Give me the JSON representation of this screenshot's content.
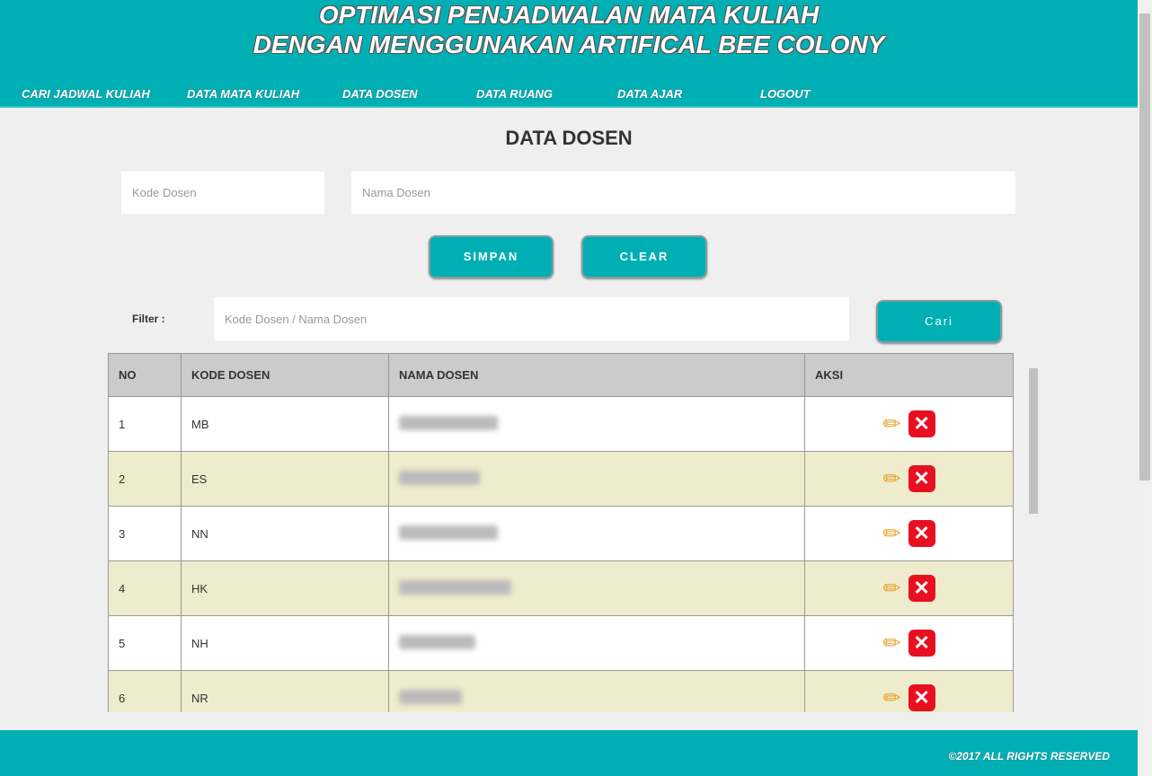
{
  "header": {
    "title_line1": "OPTIMASI PENJADWALAN MATA KULIAH",
    "title_line2": "DENGAN MENGGUNAKAN ARTIFICAL BEE COLONY"
  },
  "nav": [
    "CARI JADWAL KULIAH",
    "DATA MATA KULIAH",
    "DATA DOSEN",
    "DATA RUANG",
    "DATA AJAR",
    "LOGOUT"
  ],
  "page_title": "DATA DOSEN",
  "form": {
    "kode_placeholder": "Kode Dosen",
    "nama_placeholder": "Nama Dosen",
    "simpan": "SIMPAN",
    "clear": "CLEAR"
  },
  "filter": {
    "label": "Filter :",
    "placeholder": "Kode Dosen / Nama Dosen",
    "button": "Cari"
  },
  "table": {
    "headers": [
      "NO",
      "KODE DOSEN",
      "NAMA DOSEN",
      "AKSI"
    ],
    "rows": [
      {
        "no": "1",
        "kode": "MB"
      },
      {
        "no": "2",
        "kode": "ES"
      },
      {
        "no": "3",
        "kode": "NN"
      },
      {
        "no": "4",
        "kode": "HK"
      },
      {
        "no": "5",
        "kode": "NH"
      },
      {
        "no": "6",
        "kode": "NR"
      }
    ]
  },
  "icons": {
    "edit": "pencil-icon",
    "delete": "delete-x-icon"
  },
  "colors": {
    "brand": "#00afb3",
    "row_alt": "#eeeccc",
    "delete": "#e81020"
  },
  "footer": {
    "copyright": "©2017 ALL RIGHTS RESERVED"
  }
}
